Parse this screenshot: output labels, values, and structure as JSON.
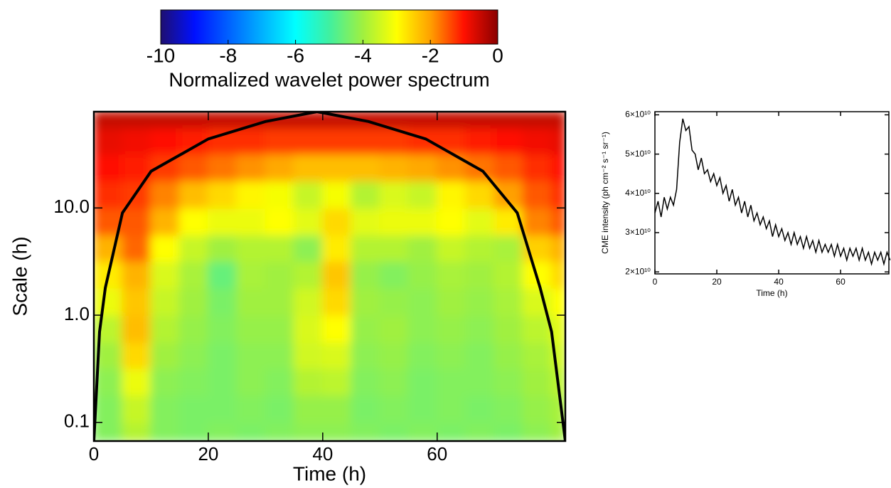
{
  "chart_data": [
    {
      "type": "heatmap",
      "xlabel": "Time (h)",
      "ylabel": "Scale (h)",
      "xlim": [
        0,
        82.4
      ],
      "ylim": [
        0.067,
        79
      ],
      "log_y": true,
      "xticks": [
        0,
        20,
        40,
        60
      ],
      "yticks": [
        {
          "value": 10,
          "label": "10.0"
        },
        {
          "value": 1,
          "label": "1.0"
        },
        0.1
      ],
      "x": [
        0,
        5,
        10,
        15,
        20,
        25,
        30,
        35,
        40,
        45,
        50,
        55,
        60,
        65,
        70,
        75,
        80,
        82.4
      ],
      "y": [
        0.067,
        0.1,
        0.18,
        0.32,
        0.56,
        1,
        1.8,
        3.2,
        5.6,
        10,
        18,
        32,
        56,
        79
      ],
      "values": [
        [
          -4.3,
          -3.8,
          -4.3,
          -4.4,
          -4.3,
          -4.4,
          -4.3,
          -4.2,
          -4.2,
          -4.3,
          -4.4,
          -4.3,
          -4.4,
          -4.3,
          -4.4,
          -4.2,
          -4.0
        ],
        [
          -4.3,
          -3.6,
          -4.3,
          -4.4,
          -4.4,
          -4.3,
          -4.4,
          -4.1,
          -4.1,
          -4.4,
          -4.3,
          -4.4,
          -4.3,
          -4.4,
          -4.3,
          -4.1,
          -3.9
        ],
        [
          -4.2,
          -3.2,
          -4.2,
          -4.3,
          -4.4,
          -4.2,
          -4.3,
          -3.8,
          -3.7,
          -4.3,
          -4.2,
          -4.4,
          -4.3,
          -4.3,
          -4.2,
          -4.0,
          -3.7
        ],
        [
          -4.0,
          -2.6,
          -4.0,
          -4.2,
          -4.4,
          -4.2,
          -4.2,
          -3.5,
          -3.4,
          -4.2,
          -4.1,
          -4.3,
          -4.2,
          -4.3,
          -4.1,
          -3.9,
          -3.5
        ],
        [
          -3.7,
          -2.3,
          -3.8,
          -4.1,
          -4.3,
          -4.1,
          -4.1,
          -3.4,
          -3.0,
          -4.1,
          -4.0,
          -4.2,
          -4.1,
          -4.2,
          -4.0,
          -3.7,
          -3.3
        ],
        [
          -3.2,
          -2.4,
          -3.6,
          -4.0,
          -4.4,
          -4.0,
          -4.0,
          -3.5,
          -2.6,
          -4.0,
          -4.1,
          -4.2,
          -4.0,
          -4.1,
          -3.9,
          -3.4,
          -3.0
        ],
        [
          -2.8,
          -2.2,
          -3.4,
          -3.9,
          -4.6,
          -3.9,
          -4.0,
          -3.8,
          -2.4,
          -4.1,
          -4.3,
          -4.1,
          -3.9,
          -4.0,
          -3.8,
          -3.0,
          -2.6
        ],
        [
          -2.2,
          -1.6,
          -3.0,
          -3.6,
          -4.0,
          -3.8,
          -3.8,
          -4.2,
          -2.8,
          -3.8,
          -3.8,
          -4.0,
          -3.6,
          -3.8,
          -3.9,
          -2.5,
          -2.2
        ],
        [
          -1.5,
          -1.5,
          -2.2,
          -3.0,
          -3.2,
          -3.2,
          -3.0,
          -3.3,
          -2.6,
          -3.3,
          -3.2,
          -3.2,
          -3.0,
          -3.3,
          -2.8,
          -1.8,
          -1.5
        ],
        [
          -1.2,
          -1.3,
          -1.8,
          -2.3,
          -2.6,
          -2.9,
          -3.1,
          -3.6,
          -3.1,
          -3.8,
          -3.4,
          -3.6,
          -2.9,
          -2.6,
          -2.0,
          -1.5,
          -1.2
        ],
        [
          -1.0,
          -1.1,
          -1.3,
          -1.5,
          -1.7,
          -1.9,
          -2.1,
          -2.3,
          -2.3,
          -2.3,
          -2.2,
          -2.1,
          -1.9,
          -1.7,
          -1.5,
          -1.2,
          -1.0
        ],
        [
          -0.8,
          -0.9,
          -1.0,
          -1.1,
          -1.2,
          -1.2,
          -1.3,
          -1.3,
          -1.3,
          -1.3,
          -1.3,
          -1.2,
          -1.2,
          -1.1,
          -1.0,
          -0.9,
          -0.8
        ],
        [
          -0.5,
          -0.5,
          -0.5,
          -0.5,
          -0.5,
          -0.5,
          -0.5,
          -0.5,
          -0.5,
          -0.5,
          -0.5,
          -0.5,
          -0.5,
          -0.5,
          -0.5,
          -0.5,
          -0.5
        ]
      ],
      "colormap": [
        "#1e0f70",
        "#0010ff",
        "#0060ff",
        "#00b0ff",
        "#00ffff",
        "#40f0a0",
        "#a0f040",
        "#ffff00",
        "#ffa000",
        "#ff1000",
        "#8a0000"
      ],
      "colorbar": {
        "label": "Normalized wavelet power spectrum",
        "lim": [
          -10,
          0
        ],
        "ticks": [
          -10,
          -8,
          -6,
          -4,
          -2,
          0
        ]
      },
      "cone": {
        "x": [
          0,
          1,
          2,
          5,
          10,
          20,
          30,
          39,
          48,
          58,
          68,
          74,
          78,
          80,
          82.4
        ],
        "y": [
          0.067,
          0.7,
          1.8,
          9,
          22,
          44,
          64,
          79,
          64,
          44,
          22,
          9,
          1.8,
          0.7,
          0.067
        ],
        "color": "#000000"
      }
    },
    {
      "type": "line",
      "xlabel": "Time (h)",
      "ylabel": "CME intensity (ph cm⁻² s⁻¹ sr⁻¹)",
      "xlim": [
        0,
        75.6
      ],
      "ylim": [
        19500000000.0,
        60800000000.0
      ],
      "xticks": [
        0,
        20,
        40,
        60
      ],
      "yticks": [
        {
          "value": 20000000000.0,
          "label": "2×10¹⁰"
        },
        {
          "value": 30000000000.0,
          "label": "3×10¹⁰"
        },
        {
          "value": 40000000000.0,
          "label": "4×10¹⁰"
        },
        {
          "value": 50000000000.0,
          "label": "5×10¹⁰"
        },
        {
          "value": 60000000000.0,
          "label": "6×10¹⁰"
        }
      ],
      "color": "#000000",
      "x": [
        0,
        1,
        2,
        3,
        4,
        5,
        6,
        7,
        8,
        9,
        10,
        11,
        12,
        13,
        14,
        15,
        16,
        17,
        18,
        19,
        20,
        21,
        22,
        23,
        24,
        25,
        26,
        27,
        28,
        29,
        30,
        31,
        32,
        33,
        34,
        35,
        36,
        37,
        38,
        39,
        40,
        41,
        42,
        43,
        44,
        45,
        46,
        47,
        48,
        49,
        50,
        51,
        52,
        53,
        54,
        55,
        56,
        57,
        58,
        59,
        60,
        61,
        62,
        63,
        64,
        65,
        66,
        67,
        68,
        69,
        70,
        71,
        72,
        73,
        74,
        75,
        76
      ],
      "values": [
        35000000000.0,
        38000000000.0,
        34000000000.0,
        39000000000.0,
        36000000000.0,
        39000000000.0,
        37000000000.0,
        41000000000.0,
        53000000000.0,
        59000000000.0,
        56000000000.0,
        57000000000.0,
        51000000000.0,
        50000000000.0,
        46000000000.0,
        49000000000.0,
        45000000000.0,
        46000000000.0,
        43000000000.0,
        45000000000.0,
        42000000000.0,
        44000000000.0,
        40000000000.0,
        42000000000.0,
        38000000000.0,
        41000000000.0,
        37000000000.0,
        39000000000.0,
        35000000000.0,
        38000000000.0,
        34000000000.0,
        37000000000.0,
        33000000000.0,
        35000000000.0,
        32000000000.0,
        34000000000.0,
        31000000000.0,
        33000000000.0,
        29000000000.0,
        32000000000.0,
        29000000000.0,
        31000000000.0,
        28000000000.0,
        30000000000.0,
        27000000000.0,
        30000000000.0,
        27000000000.0,
        29000000000.0,
        26000000000.0,
        29000000000.0,
        26000000000.0,
        28000000000.0,
        25000000000.0,
        28000000000.0,
        25000000000.0,
        27000000000.0,
        25000000000.0,
        27000000000.0,
        24000000000.0,
        27000000000.0,
        24000000000.0,
        26000000000.0,
        23000000000.0,
        26000000000.0,
        24000000000.0,
        26000000000.0,
        23000000000.0,
        26000000000.0,
        23000000000.0,
        25000000000.0,
        22000000000.0,
        25000000000.0,
        23000000000.0,
        25000000000.0,
        22000000000.0,
        25000000000.0,
        23000000000.0
      ]
    }
  ]
}
